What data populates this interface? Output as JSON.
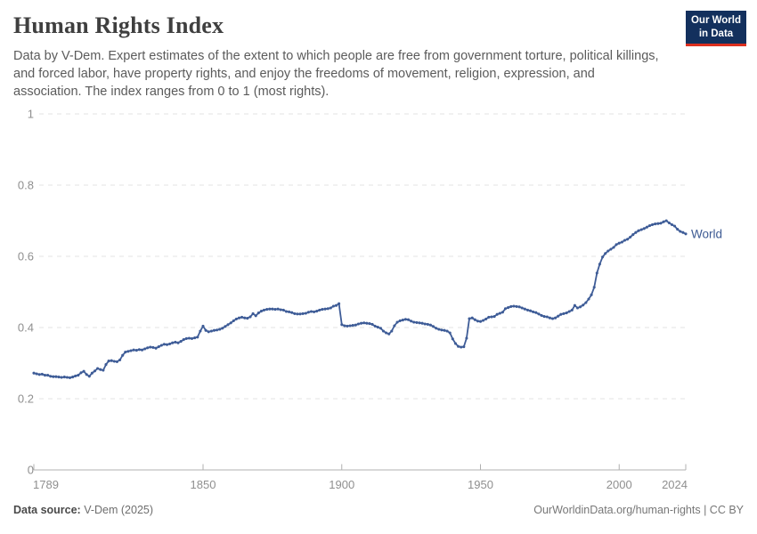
{
  "header": {
    "title": "Human Rights Index",
    "subtitle": "Data by V-Dem. Expert estimates of the extent to which people are free from government torture, political killings, and forced labor, have property rights, and enjoy the freedoms of movement, religion, expression, and association. The index ranges from 0 to 1 (most rights).",
    "logo": {
      "line1": "Our World",
      "line2": "in Data"
    }
  },
  "footer": {
    "source_label": "Data source:",
    "source_value": "V-Dem (2025)",
    "license_text": "OurWorldinData.org/human-rights | CC BY"
  },
  "colors": {
    "line": "#3e5c97",
    "series_label": "#3d5a93",
    "grid": "#e3e3e3",
    "axis": "#b0b0b0",
    "tick_text": "#8f8f8f",
    "logo_bg": "#13305d",
    "logo_bar": "#dc2f1e"
  },
  "chart_data": {
    "type": "line",
    "title": "Human Rights Index",
    "xlabel": "",
    "ylabel": "",
    "xlim": [
      1789,
      2024
    ],
    "ylim": [
      0,
      1
    ],
    "x_ticks": [
      1789,
      1850,
      1900,
      1950,
      2000,
      2024
    ],
    "y_ticks": [
      0,
      0.2,
      0.4,
      0.6,
      0.8,
      1
    ],
    "grid": "horizontal-dashed",
    "legend": "end-of-line-label",
    "series": [
      {
        "name": "World",
        "points": [
          [
            1789,
            0.272
          ],
          [
            1790,
            0.27
          ],
          [
            1791,
            0.268
          ],
          [
            1792,
            0.269
          ],
          [
            1793,
            0.266
          ],
          [
            1794,
            0.266
          ],
          [
            1795,
            0.263
          ],
          [
            1796,
            0.262
          ],
          [
            1797,
            0.262
          ],
          [
            1798,
            0.261
          ],
          [
            1799,
            0.26
          ],
          [
            1800,
            0.261
          ],
          [
            1801,
            0.26
          ],
          [
            1802,
            0.259
          ],
          [
            1803,
            0.261
          ],
          [
            1804,
            0.264
          ],
          [
            1805,
            0.266
          ],
          [
            1806,
            0.273
          ],
          [
            1807,
            0.277
          ],
          [
            1808,
            0.268
          ],
          [
            1809,
            0.263
          ],
          [
            1810,
            0.272
          ],
          [
            1811,
            0.278
          ],
          [
            1812,
            0.285
          ],
          [
            1813,
            0.282
          ],
          [
            1814,
            0.28
          ],
          [
            1815,
            0.296
          ],
          [
            1816,
            0.306
          ],
          [
            1817,
            0.307
          ],
          [
            1818,
            0.305
          ],
          [
            1819,
            0.304
          ],
          [
            1820,
            0.309
          ],
          [
            1821,
            0.322
          ],
          [
            1822,
            0.331
          ],
          [
            1823,
            0.333
          ],
          [
            1824,
            0.335
          ],
          [
            1825,
            0.337
          ],
          [
            1826,
            0.336
          ],
          [
            1827,
            0.338
          ],
          [
            1828,
            0.337
          ],
          [
            1829,
            0.34
          ],
          [
            1830,
            0.343
          ],
          [
            1831,
            0.345
          ],
          [
            1832,
            0.344
          ],
          [
            1833,
            0.342
          ],
          [
            1834,
            0.346
          ],
          [
            1835,
            0.35
          ],
          [
            1836,
            0.353
          ],
          [
            1837,
            0.352
          ],
          [
            1838,
            0.354
          ],
          [
            1839,
            0.357
          ],
          [
            1840,
            0.359
          ],
          [
            1841,
            0.357
          ],
          [
            1842,
            0.361
          ],
          [
            1843,
            0.366
          ],
          [
            1844,
            0.369
          ],
          [
            1845,
            0.37
          ],
          [
            1846,
            0.369
          ],
          [
            1847,
            0.371
          ],
          [
            1848,
            0.373
          ],
          [
            1849,
            0.39
          ],
          [
            1850,
            0.404
          ],
          [
            1851,
            0.392
          ],
          [
            1852,
            0.388
          ],
          [
            1853,
            0.39
          ],
          [
            1854,
            0.392
          ],
          [
            1855,
            0.393
          ],
          [
            1856,
            0.395
          ],
          [
            1857,
            0.398
          ],
          [
            1858,
            0.403
          ],
          [
            1859,
            0.408
          ],
          [
            1860,
            0.413
          ],
          [
            1861,
            0.419
          ],
          [
            1862,
            0.424
          ],
          [
            1863,
            0.427
          ],
          [
            1864,
            0.429
          ],
          [
            1865,
            0.427
          ],
          [
            1866,
            0.426
          ],
          [
            1867,
            0.43
          ],
          [
            1868,
            0.439
          ],
          [
            1869,
            0.433
          ],
          [
            1870,
            0.441
          ],
          [
            1871,
            0.446
          ],
          [
            1872,
            0.449
          ],
          [
            1873,
            0.451
          ],
          [
            1874,
            0.452
          ],
          [
            1875,
            0.452
          ],
          [
            1876,
            0.451
          ],
          [
            1877,
            0.452
          ],
          [
            1878,
            0.45
          ],
          [
            1879,
            0.449
          ],
          [
            1880,
            0.445
          ],
          [
            1881,
            0.444
          ],
          [
            1882,
            0.442
          ],
          [
            1883,
            0.439
          ],
          [
            1884,
            0.438
          ],
          [
            1885,
            0.438
          ],
          [
            1886,
            0.439
          ],
          [
            1887,
            0.44
          ],
          [
            1888,
            0.443
          ],
          [
            1889,
            0.445
          ],
          [
            1890,
            0.444
          ],
          [
            1891,
            0.446
          ],
          [
            1892,
            0.449
          ],
          [
            1893,
            0.451
          ],
          [
            1894,
            0.452
          ],
          [
            1895,
            0.453
          ],
          [
            1896,
            0.455
          ],
          [
            1897,
            0.46
          ],
          [
            1898,
            0.462
          ],
          [
            1899,
            0.467
          ],
          [
            1900,
            0.408
          ],
          [
            1901,
            0.405
          ],
          [
            1902,
            0.404
          ],
          [
            1903,
            0.405
          ],
          [
            1904,
            0.406
          ],
          [
            1905,
            0.407
          ],
          [
            1906,
            0.41
          ],
          [
            1907,
            0.412
          ],
          [
            1908,
            0.413
          ],
          [
            1909,
            0.412
          ],
          [
            1910,
            0.411
          ],
          [
            1911,
            0.409
          ],
          [
            1912,
            0.404
          ],
          [
            1913,
            0.401
          ],
          [
            1914,
            0.398
          ],
          [
            1915,
            0.39
          ],
          [
            1916,
            0.385
          ],
          [
            1917,
            0.382
          ],
          [
            1918,
            0.39
          ],
          [
            1919,
            0.405
          ],
          [
            1920,
            0.415
          ],
          [
            1921,
            0.419
          ],
          [
            1922,
            0.421
          ],
          [
            1923,
            0.423
          ],
          [
            1924,
            0.422
          ],
          [
            1925,
            0.418
          ],
          [
            1926,
            0.415
          ],
          [
            1927,
            0.414
          ],
          [
            1928,
            0.413
          ],
          [
            1929,
            0.412
          ],
          [
            1930,
            0.41
          ],
          [
            1931,
            0.409
          ],
          [
            1932,
            0.407
          ],
          [
            1933,
            0.403
          ],
          [
            1934,
            0.398
          ],
          [
            1935,
            0.395
          ],
          [
            1936,
            0.393
          ],
          [
            1937,
            0.392
          ],
          [
            1938,
            0.39
          ],
          [
            1939,
            0.385
          ],
          [
            1940,
            0.368
          ],
          [
            1941,
            0.355
          ],
          [
            1942,
            0.347
          ],
          [
            1943,
            0.345
          ],
          [
            1944,
            0.346
          ],
          [
            1945,
            0.37
          ],
          [
            1946,
            0.425
          ],
          [
            1947,
            0.427
          ],
          [
            1948,
            0.422
          ],
          [
            1949,
            0.418
          ],
          [
            1950,
            0.417
          ],
          [
            1951,
            0.42
          ],
          [
            1952,
            0.424
          ],
          [
            1953,
            0.429
          ],
          [
            1954,
            0.43
          ],
          [
            1955,
            0.431
          ],
          [
            1956,
            0.437
          ],
          [
            1957,
            0.44
          ],
          [
            1958,
            0.443
          ],
          [
            1959,
            0.453
          ],
          [
            1960,
            0.456
          ],
          [
            1961,
            0.459
          ],
          [
            1962,
            0.46
          ],
          [
            1963,
            0.459
          ],
          [
            1964,
            0.458
          ],
          [
            1965,
            0.455
          ],
          [
            1966,
            0.452
          ],
          [
            1967,
            0.449
          ],
          [
            1968,
            0.447
          ],
          [
            1969,
            0.444
          ],
          [
            1970,
            0.442
          ],
          [
            1971,
            0.438
          ],
          [
            1972,
            0.434
          ],
          [
            1973,
            0.431
          ],
          [
            1974,
            0.43
          ],
          [
            1975,
            0.427
          ],
          [
            1976,
            0.425
          ],
          [
            1977,
            0.427
          ],
          [
            1978,
            0.432
          ],
          [
            1979,
            0.437
          ],
          [
            1980,
            0.439
          ],
          [
            1981,
            0.441
          ],
          [
            1982,
            0.445
          ],
          [
            1983,
            0.449
          ],
          [
            1984,
            0.462
          ],
          [
            1985,
            0.455
          ],
          [
            1986,
            0.458
          ],
          [
            1987,
            0.463
          ],
          [
            1988,
            0.47
          ],
          [
            1989,
            0.48
          ],
          [
            1990,
            0.492
          ],
          [
            1991,
            0.513
          ],
          [
            1992,
            0.553
          ],
          [
            1993,
            0.578
          ],
          [
            1994,
            0.598
          ],
          [
            1995,
            0.608
          ],
          [
            1996,
            0.615
          ],
          [
            1997,
            0.62
          ],
          [
            1998,
            0.625
          ],
          [
            1999,
            0.633
          ],
          [
            2000,
            0.637
          ],
          [
            2001,
            0.64
          ],
          [
            2002,
            0.645
          ],
          [
            2003,
            0.648
          ],
          [
            2004,
            0.654
          ],
          [
            2005,
            0.661
          ],
          [
            2006,
            0.667
          ],
          [
            2007,
            0.672
          ],
          [
            2008,
            0.675
          ],
          [
            2009,
            0.678
          ],
          [
            2010,
            0.682
          ],
          [
            2011,
            0.686
          ],
          [
            2012,
            0.689
          ],
          [
            2013,
            0.691
          ],
          [
            2014,
            0.692
          ],
          [
            2015,
            0.693
          ],
          [
            2016,
            0.697
          ],
          [
            2017,
            0.7
          ],
          [
            2018,
            0.694
          ],
          [
            2019,
            0.689
          ],
          [
            2020,
            0.685
          ],
          [
            2021,
            0.676
          ],
          [
            2022,
            0.67
          ],
          [
            2023,
            0.667
          ],
          [
            2024,
            0.663
          ]
        ]
      }
    ]
  }
}
